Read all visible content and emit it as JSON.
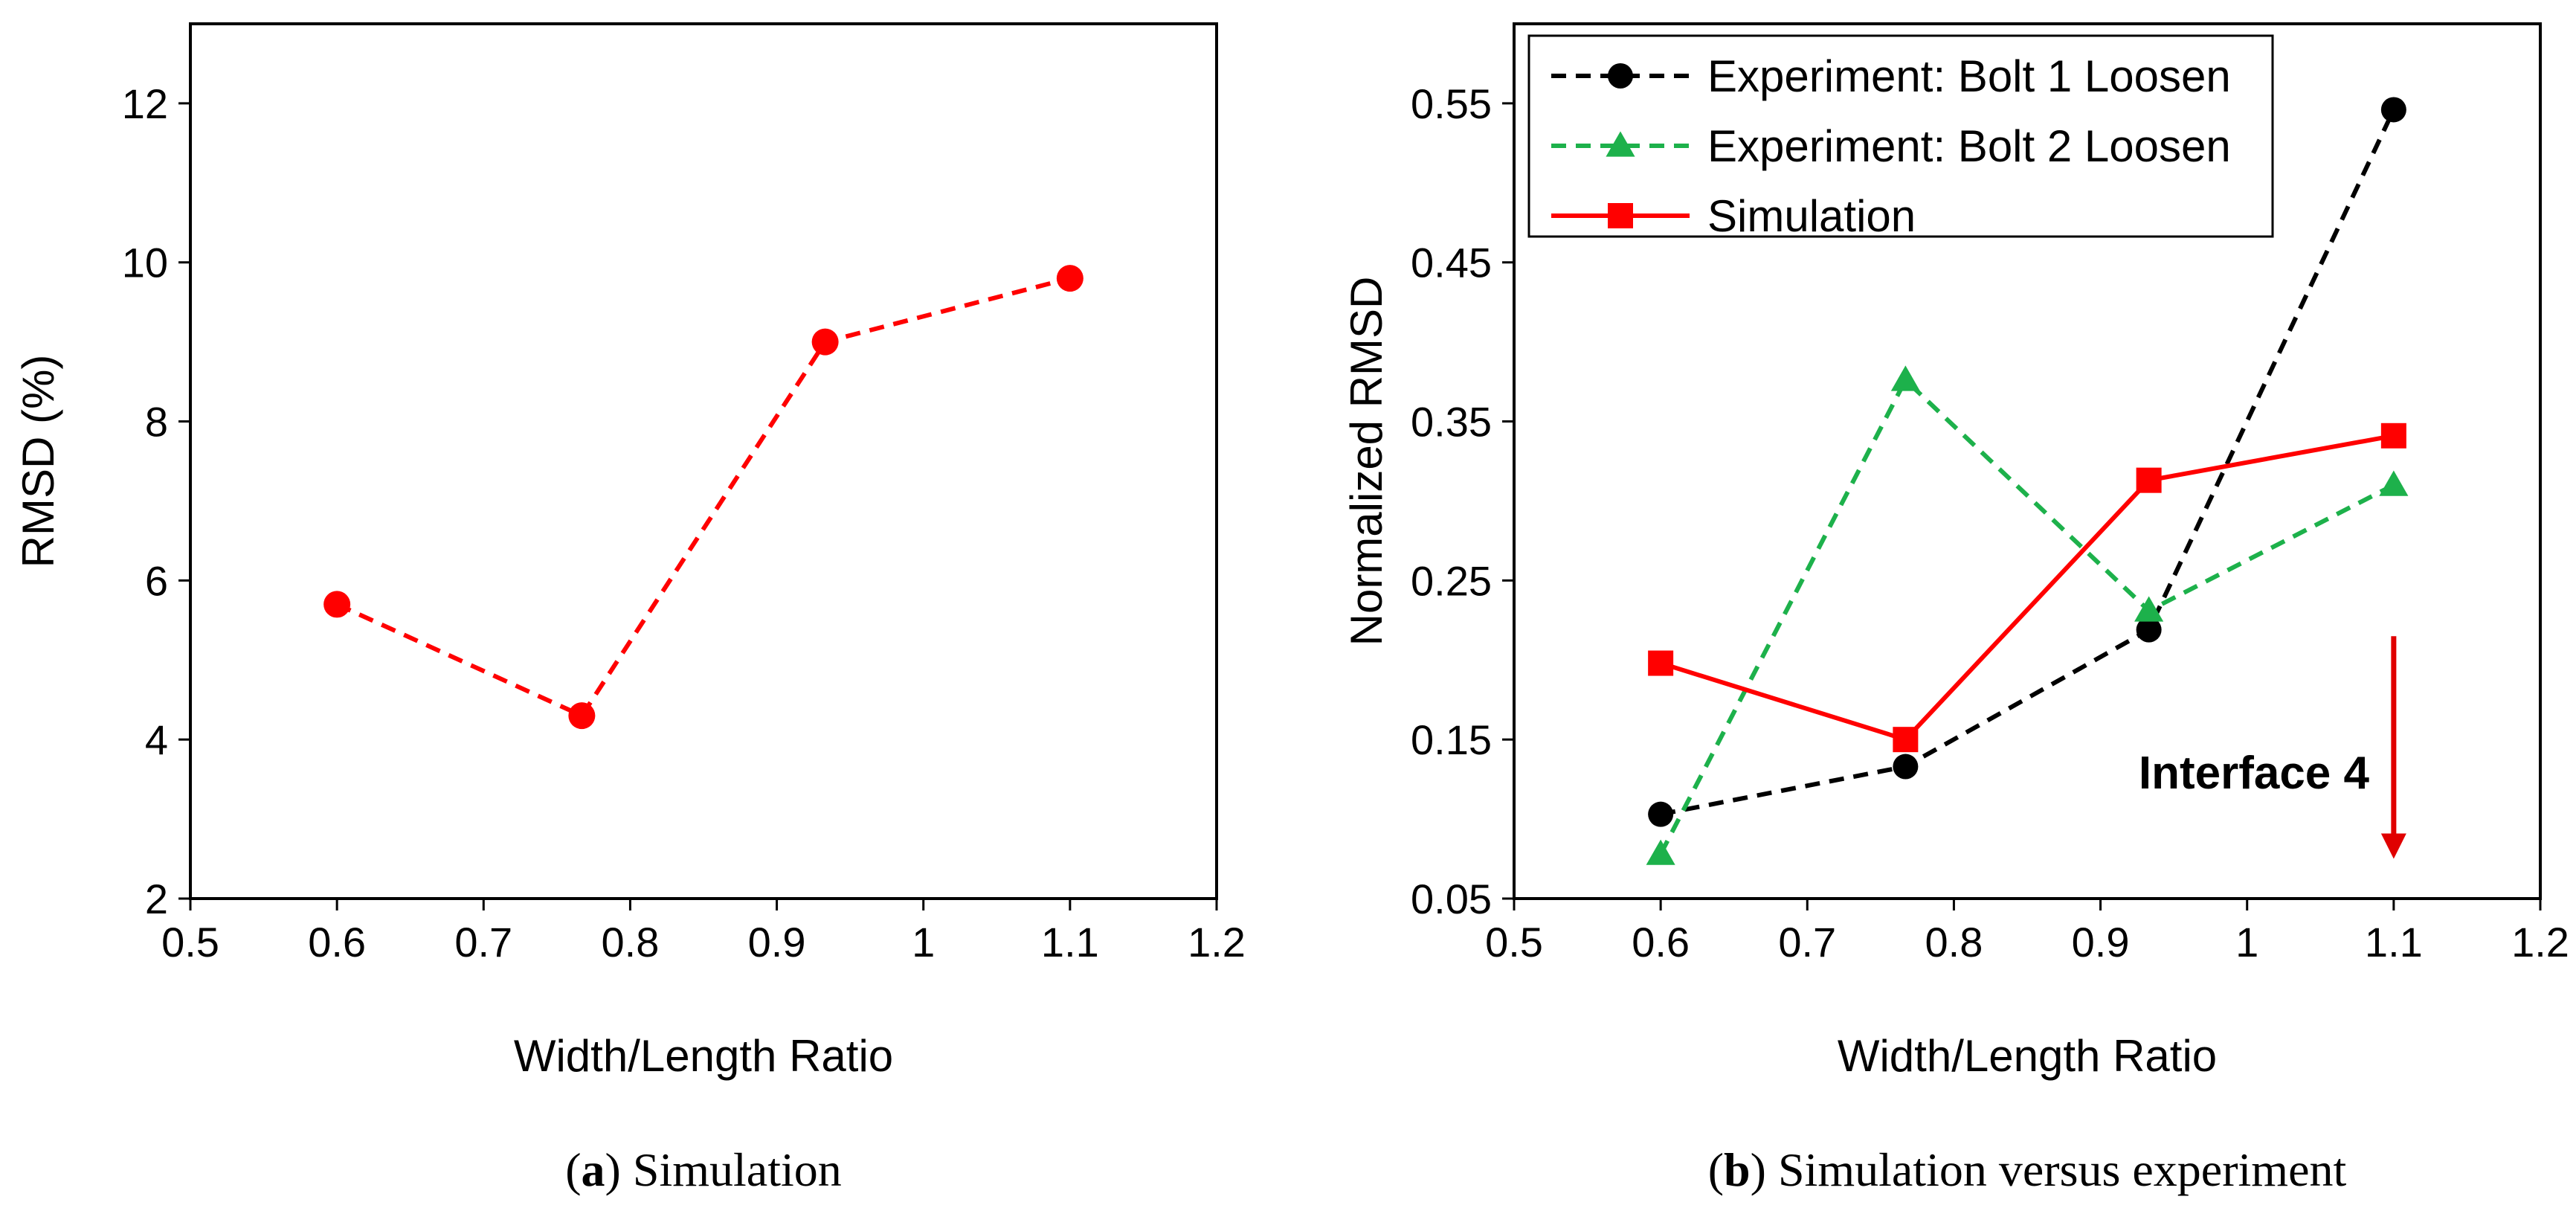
{
  "chart_data": [
    {
      "type": "line",
      "caption_tag": "a",
      "caption_text": "Simulation",
      "xlabel": "Width/Length Ratio",
      "ylabel": "RMSD (%)",
      "xlim": [
        0.5,
        1.2
      ],
      "ylim": [
        2,
        13
      ],
      "xticks": [
        "0.5",
        "0.6",
        "0.7",
        "0.8",
        "0.9",
        "1",
        "1.1",
        "1.2"
      ],
      "xtick_values": [
        0.5,
        0.6,
        0.7,
        0.8,
        0.9,
        1.0,
        1.1,
        1.2
      ],
      "yticks": [
        "2",
        "4",
        "6",
        "8",
        "10",
        "12"
      ],
      "ytick_values": [
        2,
        4,
        6,
        8,
        10,
        12
      ],
      "grid": false,
      "series": [
        {
          "name": "Simulation",
          "x": [
            0.6,
            0.767,
            0.933,
            1.1
          ],
          "y": [
            5.7,
            4.3,
            9.0,
            9.8
          ],
          "color": "#ff0000",
          "line_style": "dashed",
          "marker": "circle"
        }
      ]
    },
    {
      "type": "line",
      "caption_tag": "b",
      "caption_text": "Simulation versus experiment",
      "xlabel": "Width/Length Ratio",
      "ylabel": "Normalized RMSD",
      "xlim": [
        0.5,
        1.2
      ],
      "ylim": [
        0.05,
        0.6
      ],
      "xticks": [
        "0.5",
        "0.6",
        "0.7",
        "0.8",
        "0.9",
        "1",
        "1.1",
        "1.2"
      ],
      "xtick_values": [
        0.5,
        0.6,
        0.7,
        0.8,
        0.9,
        1.0,
        1.1,
        1.2
      ],
      "yticks": [
        "0.05",
        "0.15",
        "0.25",
        "0.35",
        "0.45",
        "0.55"
      ],
      "ytick_values": [
        0.05,
        0.15,
        0.25,
        0.35,
        0.45,
        0.55
      ],
      "grid": false,
      "legend_position": "top-left",
      "annotation": {
        "text": "Interface 4",
        "arrow_x": 1.1,
        "arrow_from_y": 0.215,
        "arrow_to_y": 0.075,
        "color": "#e00000"
      },
      "series": [
        {
          "name": "Experiment: Bolt 1 Loosen",
          "x": [
            0.6,
            0.767,
            0.933,
            1.1
          ],
          "y": [
            0.103,
            0.133,
            0.219,
            0.546
          ],
          "color": "#000000",
          "line_style": "dashed",
          "marker": "circle"
        },
        {
          "name": "Experiment: Bolt 2 Loosen",
          "x": [
            0.6,
            0.767,
            0.933,
            1.1
          ],
          "y": [
            0.078,
            0.376,
            0.231,
            0.31
          ],
          "color": "#1db14b",
          "line_style": "dashed",
          "marker": "triangle"
        },
        {
          "name": "Simulation",
          "x": [
            0.6,
            0.767,
            0.933,
            1.1
          ],
          "y": [
            0.198,
            0.15,
            0.313,
            0.341
          ],
          "color": "#ff0000",
          "line_style": "solid",
          "marker": "square"
        }
      ]
    }
  ]
}
